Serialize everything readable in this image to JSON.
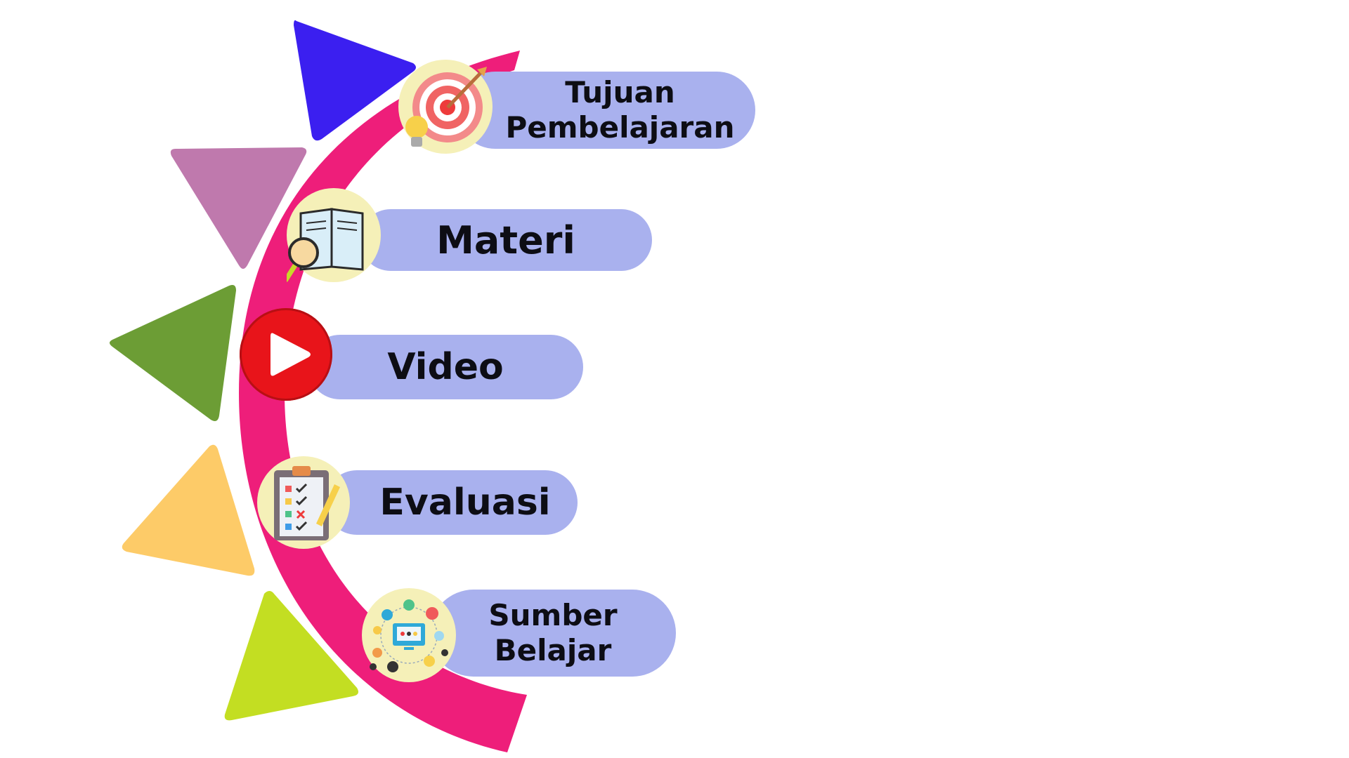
{
  "menu": {
    "items": [
      {
        "id": "tujuan",
        "line1": "Tujuan",
        "line2": "Pembelajaran",
        "icon": "target-icon"
      },
      {
        "id": "materi",
        "label": "Materi",
        "icon": "book-magnifier-icon"
      },
      {
        "id": "video",
        "label": "Video",
        "icon": "play-icon"
      },
      {
        "id": "evaluasi",
        "label": "Evaluasi",
        "icon": "checklist-clipboard-icon"
      },
      {
        "id": "sumber",
        "line1": "Sumber",
        "line2": "Belajar",
        "icon": "learning-network-icon"
      }
    ]
  },
  "colors": {
    "arc": "#ee1e7a",
    "pill": "#a9b1ee",
    "icon_bg": "#f5f0b8",
    "triangle_1": "#3b1ff0",
    "triangle_2": "#bf79ad",
    "triangle_3": "#6c9d35",
    "triangle_4": "#fdcb68",
    "triangle_5": "#c3de22"
  }
}
